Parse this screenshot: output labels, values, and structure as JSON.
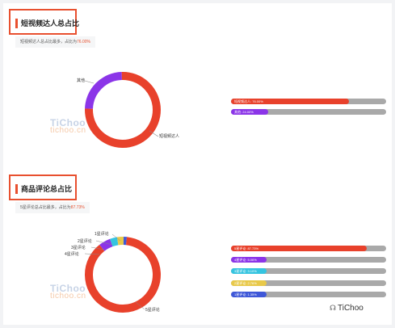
{
  "section1": {
    "title": "短视频达人总占比",
    "note_prefix": "短视频达人总占比最多，占比为",
    "note_value": "76.00%",
    "label_other": "其他",
    "label_main": "短视频达人",
    "bars": [
      {
        "label": "短视频达人: 76.00%",
        "value": 76.0,
        "color": "#e8412b"
      },
      {
        "label": "其他: 24.00%",
        "value": 24.0,
        "color": "#8b35e8"
      }
    ]
  },
  "section2": {
    "title": "商品评论总占比",
    "note_prefix": "5星评论总占比最多，占比为",
    "note_value": "87.73%",
    "labels": [
      "1星评论",
      "2星评论",
      "3星评论",
      "4星评论",
      "5星评论"
    ],
    "bars": [
      {
        "label": "5星评论: 87.73%",
        "value": 87.73,
        "color": "#e8412b"
      },
      {
        "label": "4星评论: 5.06%",
        "value": 5.06,
        "color": "#8b35e8"
      },
      {
        "label": "3星评论: 3.10%",
        "value": 3.1,
        "color": "#35c4e0"
      },
      {
        "label": "2星评论: 2.76%",
        "value": 2.76,
        "color": "#e8c94a"
      },
      {
        "label": "1星评论: 1.35%",
        "value": 1.35,
        "color": "#3f58d8"
      }
    ]
  },
  "watermark": {
    "line1": "TiChoo",
    "line2": "tichoo.cn"
  },
  "brand": {
    "name": "TiChoo"
  },
  "colors": {
    "accent": "#e8502f",
    "track": "#a9a9a9"
  }
}
